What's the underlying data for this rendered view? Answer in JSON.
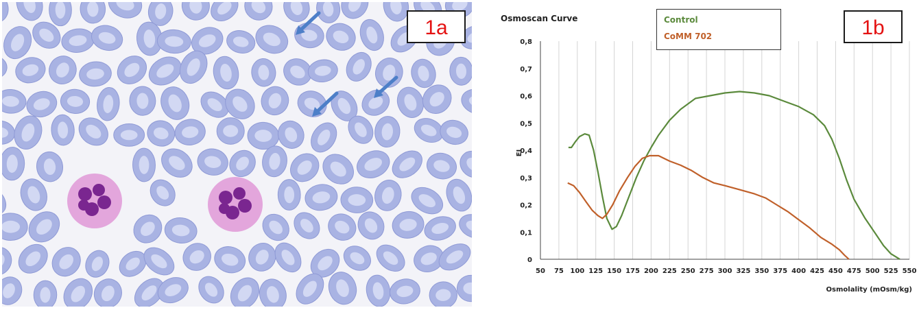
{
  "panel_a": {
    "tag": "1a"
  },
  "panel_b": {
    "tag": "1b"
  },
  "chart_data": {
    "type": "line",
    "title": "Osmoscan Curve",
    "xlabel": "Osmolality (mOsm/kg)",
    "ylabel": "EI",
    "xlim": [
      50,
      550
    ],
    "ylim": [
      0,
      0.8
    ],
    "x_ticks": [
      "50",
      "75",
      "100",
      "125",
      "150",
      "175",
      "200",
      "225",
      "250",
      "275",
      "300",
      "325",
      "350",
      "375",
      "400",
      "425",
      "450",
      "475",
      "500",
      "525",
      "550"
    ],
    "y_ticks": [
      "0",
      "0,1",
      "0,2",
      "0,3",
      "0,4",
      "0,5",
      "0,6",
      "0,7",
      "0,8"
    ],
    "grid": "vertical",
    "legend_position": "top-center",
    "series": [
      {
        "name": "Control",
        "color": "#5b8a3c",
        "points": [
          [
            88,
            0.41
          ],
          [
            92,
            0.41
          ],
          [
            97,
            0.43
          ],
          [
            103,
            0.45
          ],
          [
            110,
            0.46
          ],
          [
            116,
            0.455
          ],
          [
            122,
            0.4
          ],
          [
            128,
            0.32
          ],
          [
            134,
            0.23
          ],
          [
            140,
            0.15
          ],
          [
            147,
            0.11
          ],
          [
            153,
            0.12
          ],
          [
            160,
            0.16
          ],
          [
            170,
            0.23
          ],
          [
            180,
            0.3
          ],
          [
            190,
            0.36
          ],
          [
            200,
            0.41
          ],
          [
            210,
            0.455
          ],
          [
            225,
            0.51
          ],
          [
            240,
            0.55
          ],
          [
            260,
            0.59
          ],
          [
            280,
            0.6
          ],
          [
            300,
            0.61
          ],
          [
            320,
            0.615
          ],
          [
            340,
            0.61
          ],
          [
            360,
            0.6
          ],
          [
            380,
            0.58
          ],
          [
            400,
            0.56
          ],
          [
            420,
            0.53
          ],
          [
            435,
            0.49
          ],
          [
            445,
            0.44
          ],
          [
            455,
            0.37
          ],
          [
            465,
            0.29
          ],
          [
            475,
            0.22
          ],
          [
            490,
            0.15
          ],
          [
            505,
            0.09
          ],
          [
            515,
            0.05
          ],
          [
            525,
            0.02
          ],
          [
            537,
            0.0
          ]
        ]
      },
      {
        "name": "CoMM 702",
        "color": "#c0602a",
        "points": [
          [
            87,
            0.28
          ],
          [
            95,
            0.27
          ],
          [
            103,
            0.245
          ],
          [
            112,
            0.21
          ],
          [
            120,
            0.18
          ],
          [
            128,
            0.16
          ],
          [
            134,
            0.15
          ],
          [
            140,
            0.165
          ],
          [
            148,
            0.2
          ],
          [
            157,
            0.25
          ],
          [
            168,
            0.3
          ],
          [
            178,
            0.34
          ],
          [
            188,
            0.37
          ],
          [
            198,
            0.38
          ],
          [
            210,
            0.38
          ],
          [
            225,
            0.36
          ],
          [
            240,
            0.345
          ],
          [
            255,
            0.325
          ],
          [
            270,
            0.3
          ],
          [
            285,
            0.28
          ],
          [
            300,
            0.27
          ],
          [
            320,
            0.255
          ],
          [
            340,
            0.24
          ],
          [
            355,
            0.225
          ],
          [
            370,
            0.2
          ],
          [
            385,
            0.175
          ],
          [
            400,
            0.145
          ],
          [
            415,
            0.115
          ],
          [
            430,
            0.08
          ],
          [
            445,
            0.055
          ],
          [
            455,
            0.035
          ],
          [
            462,
            0.015
          ],
          [
            468,
            0.0
          ]
        ]
      }
    ]
  },
  "colors": {
    "panel_tag_text": "#e41212",
    "cell_fill": "#a9b3e3",
    "cell_pale": "#d2d8f3",
    "neutrophil_cytoplasm": "#e3a6dc",
    "neutrophil_nucleus": "#7a2690",
    "arrow": "#4d7fc8"
  },
  "image_content": {
    "panel_a_icons": [
      "red-blood-cell-icon",
      "neutrophil-icon",
      "arrow-icon"
    ]
  }
}
